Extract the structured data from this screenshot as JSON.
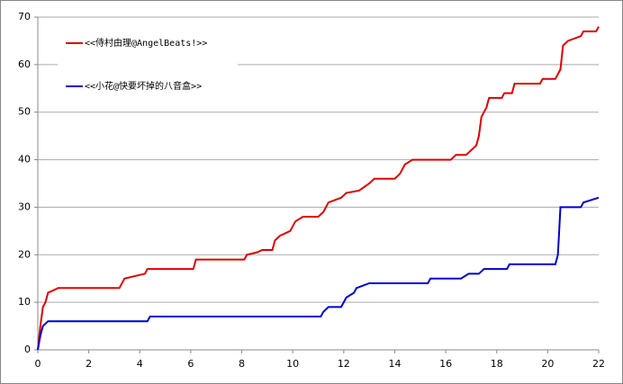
{
  "chart_data": {
    "type": "line",
    "xlim": [
      0,
      22
    ],
    "xticks": [
      0,
      2,
      4,
      6,
      8,
      10,
      12,
      14,
      16,
      18,
      20,
      22
    ],
    "ylim": [
      0,
      70
    ],
    "yticks": [
      0,
      10,
      20,
      30,
      40,
      50,
      60,
      70
    ],
    "grid": true,
    "legend": "top-left",
    "series": [
      {
        "name": "<<侍村由理@AngelBeats!>>",
        "color": "#dd0000",
        "x": [
          0,
          0.1,
          0.2,
          0.3,
          0.4,
          0.6,
          0.8,
          1,
          3.2,
          3.4,
          3.8,
          4.2,
          4.3,
          6.1,
          6.2,
          8.1,
          8.2,
          8.6,
          8.8,
          9.2,
          9.3,
          9.5,
          9.9,
          10.1,
          10.4,
          11,
          11.2,
          11.4,
          11.9,
          12.1,
          12.6,
          13,
          13.2,
          14,
          14.2,
          14.4,
          14.7,
          16.2,
          16.4,
          16.8,
          17.2,
          17.3,
          17.4,
          17.6,
          17.7,
          18.2,
          18.3,
          18.6,
          18.7,
          19.7,
          19.8,
          20.3,
          20.5,
          20.6,
          20.8,
          21.3,
          21.4,
          21.9,
          22
        ],
        "values": [
          0,
          5,
          9,
          10,
          12,
          12.5,
          13,
          13,
          13,
          15,
          15.5,
          16,
          17,
          17,
          19,
          19,
          20,
          20.5,
          21,
          21,
          23,
          24,
          25,
          27,
          28,
          28,
          29,
          31,
          32,
          33,
          33.5,
          35,
          36,
          36,
          37,
          39,
          40,
          40,
          41,
          41,
          43,
          45,
          49,
          51,
          53,
          53,
          54,
          54,
          56,
          56,
          57,
          57,
          59,
          64,
          65,
          66,
          67,
          67,
          68
        ]
      },
      {
        "name": "<<小花@快要坏掉的八音盒>>",
        "color": "#0000cc",
        "x": [
          0,
          0.1,
          0.2,
          0.4,
          4.3,
          4.4,
          11.1,
          11.2,
          11.4,
          11.9,
          12.1,
          12.4,
          12.5,
          13,
          15.3,
          15.4,
          16.6,
          16.9,
          17.3,
          17.5,
          18.4,
          18.5,
          20.3,
          20.4,
          20.5,
          21.3,
          21.4,
          22
        ],
        "values": [
          0,
          3,
          5,
          6,
          6,
          7,
          7,
          8,
          9,
          9,
          11,
          12,
          13,
          14,
          14,
          15,
          15,
          16,
          16,
          17,
          17,
          18,
          18,
          20,
          30,
          30,
          31,
          32
        ]
      }
    ]
  }
}
